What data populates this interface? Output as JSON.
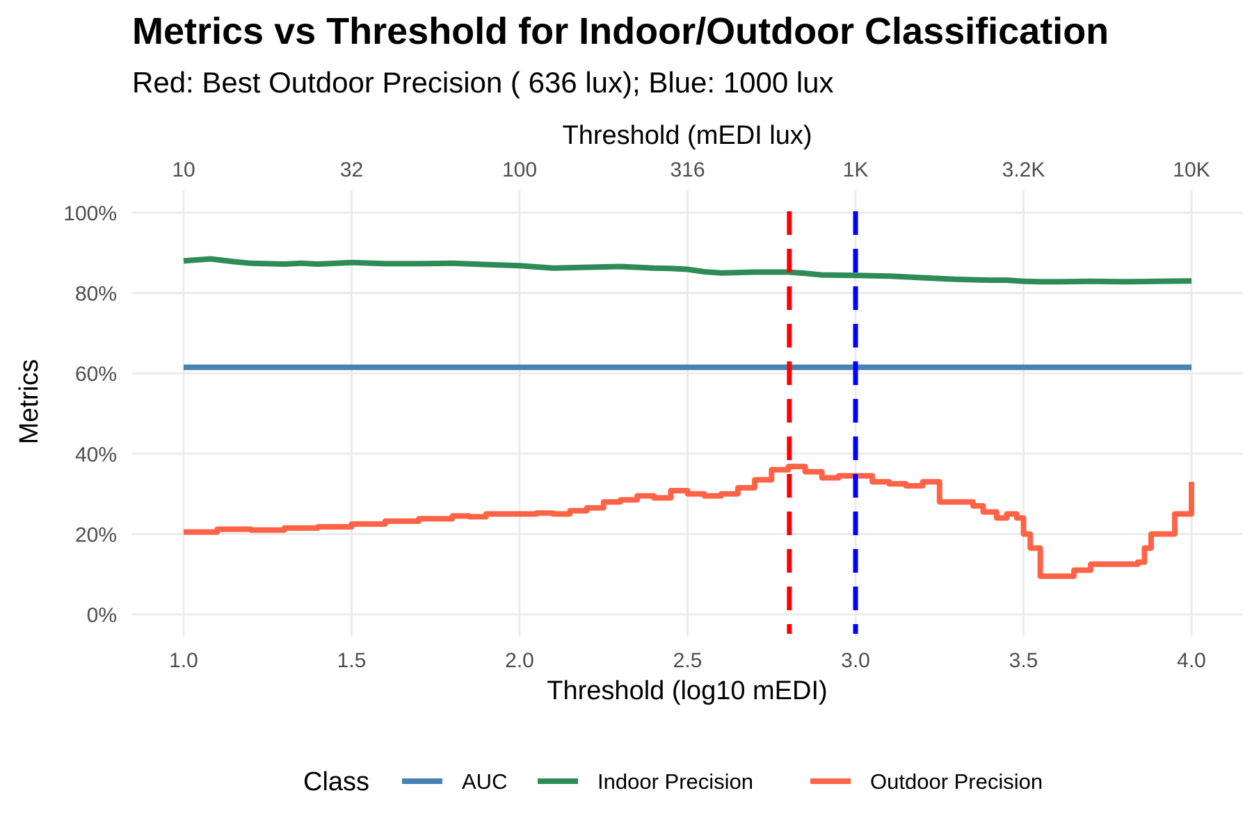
{
  "chart_data": {
    "type": "line",
    "title": "Metrics vs Threshold for Indoor/Outdoor Classification",
    "subtitle": "Red: Best Outdoor Precision ( 636  lux); Blue: 1000 lux",
    "xlabel": "Threshold (log10 mEDI)",
    "x2label": "Threshold (mEDI lux)",
    "ylabel": "Metrics",
    "xlim": [
      1.0,
      4.0
    ],
    "ylim": [
      0,
      1
    ],
    "x_ticks": [
      1.0,
      1.5,
      2.0,
      2.5,
      3.0,
      3.5,
      4.0
    ],
    "x_tick_labels": [
      "1.0",
      "1.5",
      "2.0",
      "2.5",
      "3.0",
      "3.5",
      "4.0"
    ],
    "x2_tick_labels": [
      "10",
      "32",
      "100",
      "316",
      "1K",
      "3.2K",
      "10K"
    ],
    "y_ticks": [
      0,
      0.2,
      0.4,
      0.6,
      0.8,
      1.0
    ],
    "y_tick_labels": [
      "0%",
      "20%",
      "40%",
      "60%",
      "80%",
      "100%"
    ],
    "grid": true,
    "legend": {
      "title": "Class",
      "position": "bottom",
      "entries": [
        "AUC",
        "Indoor Precision",
        "Outdoor Precision"
      ]
    },
    "vlines": [
      {
        "x": 2.803,
        "color": "#ff0000",
        "style": "dashed"
      },
      {
        "x": 3.0,
        "color": "#0000ff",
        "style": "dashed"
      }
    ],
    "series": [
      {
        "name": "AUC",
        "color": "#4682b4",
        "x": [
          1.0,
          4.0
        ],
        "y": [
          0.615,
          0.615
        ]
      },
      {
        "name": "Indoor Precision",
        "color": "#2e8b57",
        "x": [
          1.0,
          1.08,
          1.15,
          1.2,
          1.3,
          1.35,
          1.4,
          1.5,
          1.6,
          1.7,
          1.8,
          1.9,
          2.0,
          2.05,
          2.1,
          2.2,
          2.3,
          2.4,
          2.45,
          2.5,
          2.55,
          2.6,
          2.7,
          2.8,
          2.85,
          2.9,
          3.0,
          3.1,
          3.2,
          3.3,
          3.4,
          3.45,
          3.5,
          3.55,
          3.6,
          3.7,
          3.8,
          3.9,
          4.0
        ],
        "y": [
          0.88,
          0.885,
          0.878,
          0.874,
          0.872,
          0.874,
          0.872,
          0.876,
          0.873,
          0.873,
          0.874,
          0.871,
          0.868,
          0.865,
          0.862,
          0.864,
          0.866,
          0.862,
          0.861,
          0.859,
          0.853,
          0.85,
          0.852,
          0.852,
          0.849,
          0.845,
          0.844,
          0.842,
          0.838,
          0.834,
          0.832,
          0.832,
          0.829,
          0.828,
          0.828,
          0.829,
          0.828,
          0.829,
          0.83
        ]
      },
      {
        "name": "Outdoor Precision",
        "color": "#ff6347",
        "x": [
          1.0,
          1.1,
          1.2,
          1.3,
          1.4,
          1.5,
          1.6,
          1.7,
          1.8,
          1.85,
          1.9,
          2.0,
          2.05,
          2.1,
          2.15,
          2.2,
          2.25,
          2.3,
          2.35,
          2.4,
          2.45,
          2.5,
          2.55,
          2.6,
          2.65,
          2.7,
          2.75,
          2.8,
          2.85,
          2.9,
          2.95,
          3.0,
          3.05,
          3.1,
          3.15,
          3.2,
          3.25,
          3.3,
          3.35,
          3.38,
          3.42,
          3.45,
          3.48,
          3.5,
          3.52,
          3.55,
          3.6,
          3.65,
          3.7,
          3.75,
          3.8,
          3.84,
          3.86,
          3.88,
          3.9,
          3.95,
          3.98,
          4.0
        ],
        "y": [
          0.205,
          0.212,
          0.21,
          0.215,
          0.218,
          0.225,
          0.232,
          0.238,
          0.245,
          0.243,
          0.25,
          0.25,
          0.252,
          0.25,
          0.258,
          0.265,
          0.28,
          0.285,
          0.295,
          0.29,
          0.308,
          0.3,
          0.295,
          0.3,
          0.315,
          0.335,
          0.36,
          0.368,
          0.355,
          0.34,
          0.345,
          0.345,
          0.33,
          0.325,
          0.32,
          0.33,
          0.28,
          0.28,
          0.27,
          0.255,
          0.24,
          0.25,
          0.24,
          0.2,
          0.165,
          0.095,
          0.095,
          0.11,
          0.125,
          0.125,
          0.125,
          0.13,
          0.165,
          0.2,
          0.2,
          0.25,
          0.25,
          0.33
        ]
      }
    ]
  }
}
